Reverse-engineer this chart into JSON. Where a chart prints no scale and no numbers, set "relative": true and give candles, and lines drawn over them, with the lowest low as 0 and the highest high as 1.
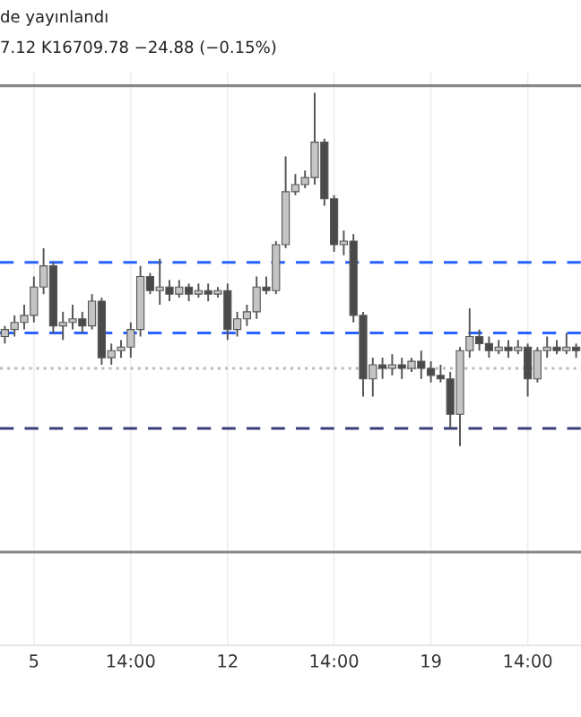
{
  "chart_data": {
    "type": "candlestick",
    "relative": true,
    "annotations": [
      "de yayınlandı",
      "7.12 K16709.78 −24.88 (−0.15%)"
    ],
    "categories": [
      null,
      null,
      null,
      "5",
      null,
      null,
      null,
      null,
      null,
      null,
      null,
      null,
      null,
      "14:00",
      null,
      null,
      null,
      null,
      null,
      null,
      null,
      null,
      null,
      "12",
      null,
      null,
      null,
      null,
      null,
      null,
      null,
      null,
      null,
      null,
      "14:00",
      null,
      null,
      null,
      null,
      null,
      null,
      null,
      null,
      null,
      "19",
      null,
      null,
      null,
      null,
      null,
      null,
      null,
      null,
      null,
      "14:00",
      null,
      null,
      null,
      null,
      null
    ],
    "ohlc": [
      [
        0.31,
        0.34,
        0.29,
        0.33
      ],
      [
        0.33,
        0.37,
        0.31,
        0.35
      ],
      [
        0.35,
        0.4,
        0.33,
        0.37
      ],
      [
        0.37,
        0.48,
        0.35,
        0.45
      ],
      [
        0.45,
        0.56,
        0.43,
        0.51
      ],
      [
        0.51,
        0.52,
        0.32,
        0.34
      ],
      [
        0.34,
        0.38,
        0.3,
        0.35
      ],
      [
        0.35,
        0.4,
        0.33,
        0.36
      ],
      [
        0.36,
        0.38,
        0.32,
        0.34
      ],
      [
        0.34,
        0.43,
        0.33,
        0.41
      ],
      [
        0.41,
        0.42,
        0.23,
        0.25
      ],
      [
        0.25,
        0.29,
        0.23,
        0.27
      ],
      [
        0.27,
        0.3,
        0.25,
        0.28
      ],
      [
        0.28,
        0.35,
        0.25,
        0.33
      ],
      [
        0.33,
        0.51,
        0.31,
        0.48
      ],
      [
        0.48,
        0.49,
        0.43,
        0.44
      ],
      [
        0.44,
        0.53,
        0.4,
        0.45
      ],
      [
        0.45,
        0.47,
        0.41,
        0.43
      ],
      [
        0.43,
        0.47,
        0.42,
        0.45
      ],
      [
        0.45,
        0.46,
        0.41,
        0.43
      ],
      [
        0.43,
        0.46,
        0.42,
        0.44
      ],
      [
        0.44,
        0.46,
        0.41,
        0.43
      ],
      [
        0.43,
        0.45,
        0.42,
        0.44
      ],
      [
        0.44,
        0.46,
        0.3,
        0.33
      ],
      [
        0.33,
        0.38,
        0.31,
        0.36
      ],
      [
        0.36,
        0.4,
        0.34,
        0.38
      ],
      [
        0.38,
        0.48,
        0.36,
        0.45
      ],
      [
        0.45,
        0.48,
        0.43,
        0.44
      ],
      [
        0.44,
        0.58,
        0.43,
        0.57
      ],
      [
        0.57,
        0.82,
        0.56,
        0.72
      ],
      [
        0.72,
        0.77,
        0.71,
        0.74
      ],
      [
        0.74,
        0.78,
        0.73,
        0.76
      ],
      [
        0.76,
        1.0,
        0.74,
        0.86
      ],
      [
        0.86,
        0.87,
        0.68,
        0.7
      ],
      [
        0.7,
        0.71,
        0.55,
        0.57
      ],
      [
        0.57,
        0.61,
        0.54,
        0.58
      ],
      [
        0.58,
        0.6,
        0.35,
        0.37
      ],
      [
        0.37,
        0.38,
        0.14,
        0.19
      ],
      [
        0.19,
        0.25,
        0.14,
        0.23
      ],
      [
        0.23,
        0.25,
        0.19,
        0.22
      ],
      [
        0.22,
        0.26,
        0.2,
        0.23
      ],
      [
        0.23,
        0.25,
        0.19,
        0.22
      ],
      [
        0.22,
        0.25,
        0.21,
        0.24
      ],
      [
        0.24,
        0.27,
        0.19,
        0.22
      ],
      [
        0.22,
        0.24,
        0.18,
        0.2
      ],
      [
        0.2,
        0.23,
        0.18,
        0.19
      ],
      [
        0.19,
        0.21,
        0.05,
        0.09
      ],
      [
        0.09,
        0.28,
        0.0,
        0.27
      ],
      [
        0.27,
        0.39,
        0.25,
        0.31
      ],
      [
        0.31,
        0.33,
        0.27,
        0.29
      ],
      [
        0.29,
        0.31,
        0.25,
        0.27
      ],
      [
        0.27,
        0.3,
        0.26,
        0.28
      ],
      [
        0.28,
        0.3,
        0.25,
        0.27
      ],
      [
        0.27,
        0.3,
        0.26,
        0.28
      ],
      [
        0.28,
        0.29,
        0.14,
        0.19
      ],
      [
        0.19,
        0.28,
        0.18,
        0.27
      ],
      [
        0.27,
        0.31,
        0.25,
        0.28
      ],
      [
        0.28,
        0.3,
        0.26,
        0.27
      ],
      [
        0.27,
        0.32,
        0.26,
        0.28
      ],
      [
        0.28,
        0.29,
        0.25,
        0.27
      ]
    ],
    "ref_lines": [
      {
        "axis": "y",
        "value": 1.02,
        "color": "#888888",
        "line_style": "solid"
      },
      {
        "axis": "y",
        "value": 0.52,
        "color": "#2962ff",
        "line_style": "dashed"
      },
      {
        "axis": "y",
        "value": 0.32,
        "color": "#2962ff",
        "line_style": "dashed"
      },
      {
        "axis": "y",
        "value": 0.22,
        "color": "#bbbbbb",
        "line_style": "dotted"
      },
      {
        "axis": "y",
        "value": 0.05,
        "color": "#3a3f7a",
        "line_style": "dashed"
      },
      {
        "axis": "y",
        "value": -0.3,
        "color": "#888888",
        "line_style": "solid"
      }
    ],
    "grid": "x"
  }
}
